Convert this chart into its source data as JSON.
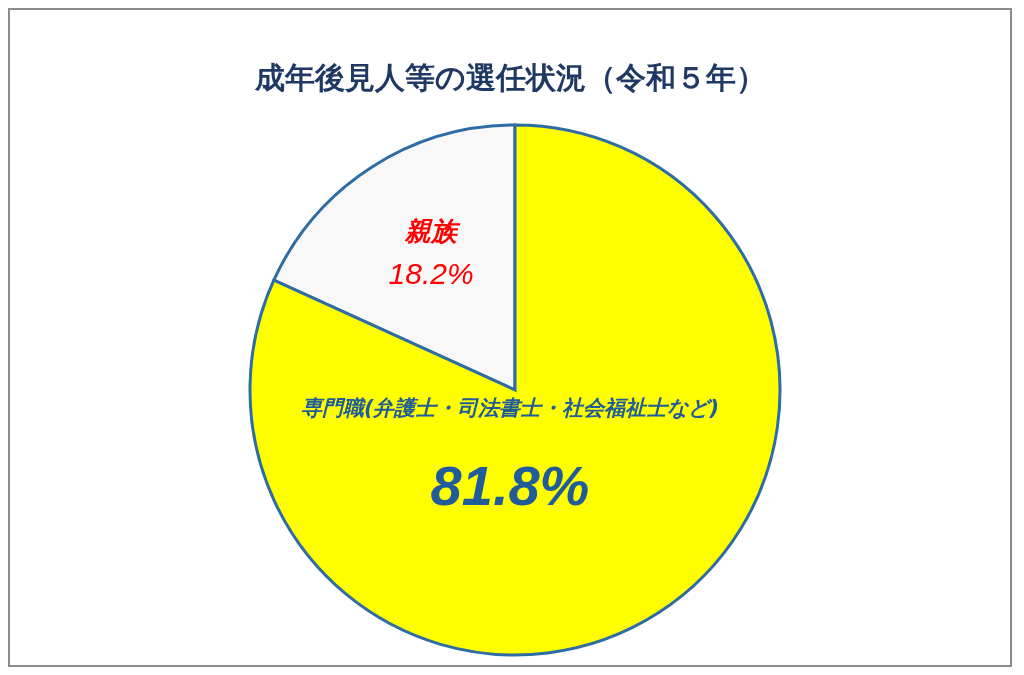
{
  "chart_data": {
    "type": "pie",
    "title": "成年後見人等の選任状況（令和５年）",
    "categories": [
      "親族",
      "専門職(弁護士・司法書士・社会福祉士など)"
    ],
    "values": [
      18.2,
      81.8
    ],
    "value_labels": [
      "18.2%",
      "81.8%"
    ],
    "colors": [
      "#f8f8f8",
      "#ffff00"
    ],
    "legend": false
  }
}
